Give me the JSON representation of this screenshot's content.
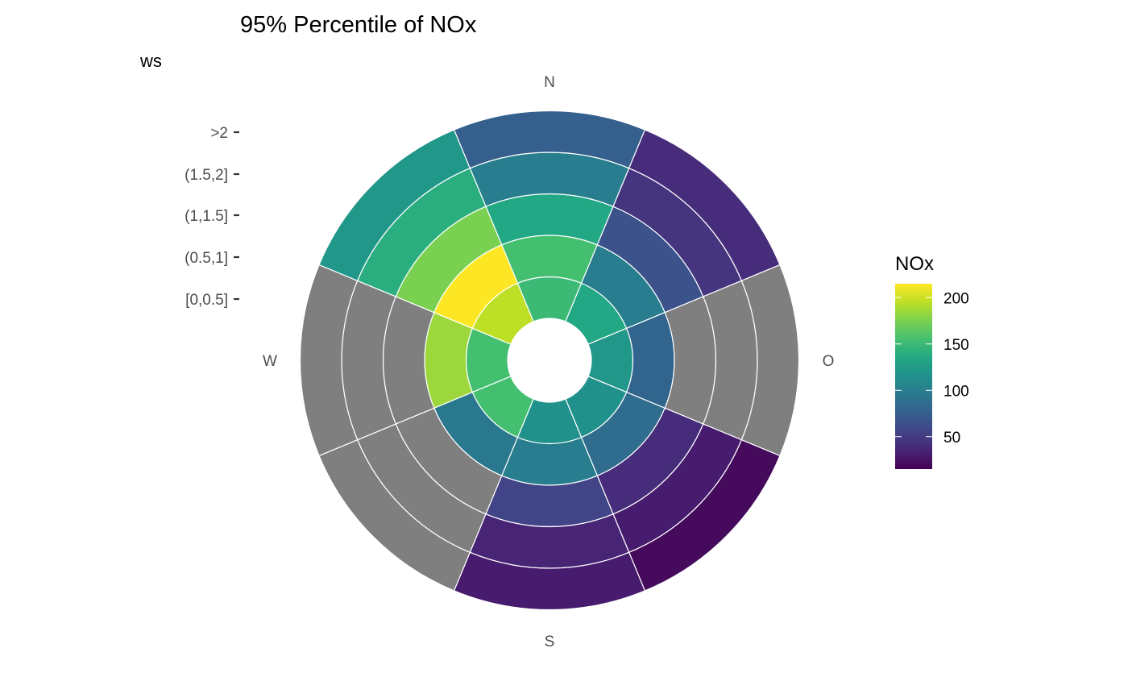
{
  "chart_data": {
    "type": "heatmap",
    "coordinate_system": "polar",
    "title": "95% Percentile of NOx",
    "ylabel": "ws",
    "direction_labels": [
      "N",
      "O",
      "S",
      "W"
    ],
    "ws_categories": [
      "[0,0.5]",
      "(0.5,1]",
      "(1,1.5]",
      "(1.5,2]",
      ">2"
    ],
    "sectors": [
      "N",
      "NO",
      "O",
      "SO",
      "S",
      "SW",
      "W",
      "NW"
    ],
    "cells": [
      {
        "sector": "N",
        "values": [
          150,
          155,
          135,
          100,
          75
        ]
      },
      {
        "sector": "NO",
        "values": [
          135,
          100,
          65,
          45,
          40
        ]
      },
      {
        "sector": "O",
        "values": [
          120,
          80,
          null,
          null,
          null
        ]
      },
      {
        "sector": "SO",
        "values": [
          115,
          85,
          40,
          30,
          20
        ]
      },
      {
        "sector": "S",
        "values": [
          115,
          100,
          55,
          35,
          30
        ]
      },
      {
        "sector": "SW",
        "values": [
          155,
          95,
          null,
          null,
          null
        ]
      },
      {
        "sector": "W",
        "values": [
          155,
          185,
          null,
          null,
          null
        ]
      },
      {
        "sector": "NW",
        "values": [
          195,
          215,
          175,
          140,
          120
        ]
      }
    ],
    "missing_color": "#7f7f7f",
    "legend": {
      "title": "NOx",
      "position": "right",
      "ticks": [
        50,
        100,
        150,
        200
      ],
      "range": [
        15,
        215
      ],
      "palette": "viridis"
    }
  }
}
